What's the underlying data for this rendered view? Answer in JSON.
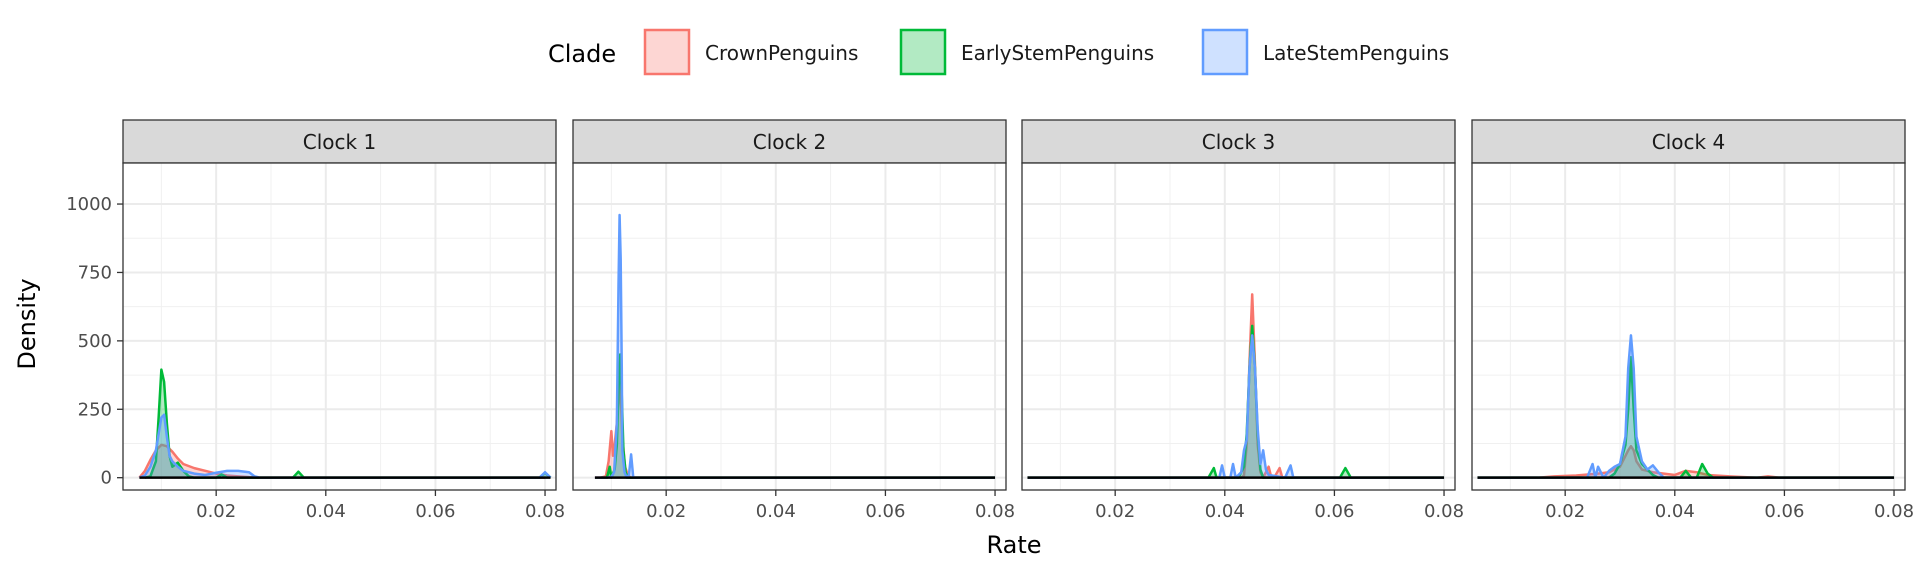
{
  "chart_data": {
    "type": "area",
    "subtype": "faceted-density",
    "xlabel": "Rate",
    "ylabel": "Density",
    "xlim": [
      0.003,
      0.082
    ],
    "ylim": [
      -45,
      1150
    ],
    "x_ticks": [
      0.02,
      0.04,
      0.06,
      0.08
    ],
    "y_ticks": [
      0,
      250,
      500,
      750,
      1000
    ],
    "x_tick_labels": [
      "0.02",
      "0.04",
      "0.06",
      "0.08"
    ],
    "y_tick_labels": [
      "0",
      "250",
      "500",
      "750",
      "1000"
    ],
    "grid": true,
    "legend": {
      "title": "Clade",
      "position": "top",
      "items": [
        "CrownPenguins",
        "EarlyStemPenguins",
        "LateStemPenguins"
      ]
    },
    "colors": {
      "CrownPenguins": {
        "line": "#F8766D",
        "fill": "#F8766D"
      },
      "EarlyStemPenguins": {
        "line": "#00BA38",
        "fill": "#00BA38"
      },
      "LateStemPenguins": {
        "line": "#619CFF",
        "fill": "#619CFF"
      }
    },
    "facets": [
      {
        "label": "Clock 1",
        "series": [
          {
            "name": "CrownPenguins",
            "points": [
              [
                0.006,
                0
              ],
              [
                0.007,
                25
              ],
              [
                0.008,
                65
              ],
              [
                0.009,
                100
              ],
              [
                0.01,
                120
              ],
              [
                0.011,
                115
              ],
              [
                0.012,
                95
              ],
              [
                0.013,
                70
              ],
              [
                0.014,
                50
              ],
              [
                0.016,
                35
              ],
              [
                0.018,
                25
              ],
              [
                0.02,
                15
              ],
              [
                0.022,
                8
              ],
              [
                0.024,
                5
              ],
              [
                0.026,
                2
              ],
              [
                0.028,
                0
              ],
              [
                0.08,
                0
              ]
            ]
          },
          {
            "name": "EarlyStemPenguins",
            "points": [
              [
                0.007,
                0
              ],
              [
                0.008,
                5
              ],
              [
                0.009,
                60
              ],
              [
                0.0095,
                220
              ],
              [
                0.01,
                395
              ],
              [
                0.0105,
                350
              ],
              [
                0.011,
                200
              ],
              [
                0.0115,
                80
              ],
              [
                0.012,
                40
              ],
              [
                0.013,
                55
              ],
              [
                0.014,
                25
              ],
              [
                0.015,
                5
              ],
              [
                0.016,
                0
              ],
              [
                0.02,
                0
              ],
              [
                0.021,
                12
              ],
              [
                0.022,
                0
              ],
              [
                0.034,
                0
              ],
              [
                0.035,
                22
              ],
              [
                0.036,
                0
              ],
              [
                0.079,
                0
              ],
              [
                0.08,
                18
              ],
              [
                0.081,
                0
              ]
            ]
          },
          {
            "name": "LateStemPenguins",
            "points": [
              [
                0.006,
                0
              ],
              [
                0.007,
                8
              ],
              [
                0.008,
                40
              ],
              [
                0.009,
                100
              ],
              [
                0.0095,
                160
              ],
              [
                0.01,
                220
              ],
              [
                0.0105,
                230
              ],
              [
                0.011,
                150
              ],
              [
                0.0115,
                80
              ],
              [
                0.012,
                60
              ],
              [
                0.013,
                40
              ],
              [
                0.014,
                25
              ],
              [
                0.016,
                15
              ],
              [
                0.018,
                10
              ],
              [
                0.02,
                18
              ],
              [
                0.022,
                25
              ],
              [
                0.024,
                25
              ],
              [
                0.026,
                20
              ],
              [
                0.027,
                5
              ],
              [
                0.028,
                0
              ],
              [
                0.079,
                0
              ],
              [
                0.08,
                20
              ],
              [
                0.081,
                0
              ]
            ]
          }
        ]
      },
      {
        "label": "Clock 2",
        "series": [
          {
            "name": "CrownPenguins",
            "points": [
              [
                0.007,
                0
              ],
              [
                0.008,
                0
              ],
              [
                0.009,
                5
              ],
              [
                0.0095,
                60
              ],
              [
                0.01,
                170
              ],
              [
                0.0103,
                80
              ],
              [
                0.0106,
                120
              ],
              [
                0.011,
                200
              ],
              [
                0.0114,
                350
              ],
              [
                0.0118,
                250
              ],
              [
                0.012,
                150
              ],
              [
                0.0125,
                40
              ],
              [
                0.013,
                10
              ],
              [
                0.0135,
                0
              ],
              [
                0.08,
                0
              ]
            ]
          },
          {
            "name": "EarlyStemPenguins",
            "points": [
              [
                0.008,
                0
              ],
              [
                0.0092,
                0
              ],
              [
                0.0097,
                40
              ],
              [
                0.01,
                0
              ],
              [
                0.0106,
                30
              ],
              [
                0.011,
                120
              ],
              [
                0.0113,
                320
              ],
              [
                0.0116,
                450
              ],
              [
                0.0119,
                300
              ],
              [
                0.0122,
                100
              ],
              [
                0.0126,
                20
              ],
              [
                0.013,
                0
              ],
              [
                0.0135,
                0
              ],
              [
                0.08,
                0
              ]
            ]
          },
          {
            "name": "LateStemPenguins",
            "points": [
              [
                0.007,
                0
              ],
              [
                0.009,
                0
              ],
              [
                0.01,
                3
              ],
              [
                0.0105,
                20
              ],
              [
                0.011,
                200
              ],
              [
                0.0113,
                700
              ],
              [
                0.0115,
                960
              ],
              [
                0.0117,
                800
              ],
              [
                0.0119,
                400
              ],
              [
                0.012,
                100
              ],
              [
                0.0124,
                20
              ],
              [
                0.0128,
                0
              ],
              [
                0.0132,
                10
              ],
              [
                0.0136,
                85
              ],
              [
                0.014,
                0
              ],
              [
                0.08,
                0
              ]
            ]
          }
        ]
      },
      {
        "label": "Clock 3",
        "series": [
          {
            "name": "CrownPenguins",
            "points": [
              [
                0.004,
                0
              ],
              [
                0.043,
                0
              ],
              [
                0.0435,
                8
              ],
              [
                0.044,
                120
              ],
              [
                0.0445,
                420
              ],
              [
                0.045,
                670
              ],
              [
                0.0455,
                420
              ],
              [
                0.046,
                120
              ],
              [
                0.0465,
                20
              ],
              [
                0.047,
                0
              ],
              [
                0.048,
                40
              ],
              [
                0.0485,
                0
              ],
              [
                0.049,
                0
              ],
              [
                0.05,
                35
              ],
              [
                0.0505,
                0
              ],
              [
                0.08,
                0
              ]
            ]
          },
          {
            "name": "EarlyStemPenguins",
            "points": [
              [
                0.004,
                0
              ],
              [
                0.037,
                0
              ],
              [
                0.038,
                35
              ],
              [
                0.0385,
                0
              ],
              [
                0.0425,
                0
              ],
              [
                0.043,
                20
              ],
              [
                0.0435,
                40
              ],
              [
                0.044,
                160
              ],
              [
                0.0445,
                400
              ],
              [
                0.045,
                555
              ],
              [
                0.0455,
                400
              ],
              [
                0.046,
                160
              ],
              [
                0.0465,
                30
              ],
              [
                0.047,
                0
              ],
              [
                0.061,
                0
              ],
              [
                0.062,
                35
              ],
              [
                0.063,
                0
              ],
              [
                0.08,
                0
              ]
            ]
          },
          {
            "name": "LateStemPenguins",
            "points": [
              [
                0.004,
                0
              ],
              [
                0.039,
                0
              ],
              [
                0.0395,
                45
              ],
              [
                0.04,
                0
              ],
              [
                0.041,
                0
              ],
              [
                0.0415,
                50
              ],
              [
                0.042,
                0
              ],
              [
                0.043,
                20
              ],
              [
                0.0435,
                100
              ],
              [
                0.044,
                140
              ],
              [
                0.0445,
                400
              ],
              [
                0.045,
                520
              ],
              [
                0.0455,
                400
              ],
              [
                0.046,
                180
              ],
              [
                0.0465,
                50
              ],
              [
                0.047,
                100
              ],
              [
                0.0475,
                30
              ],
              [
                0.048,
                10
              ],
              [
                0.051,
                0
              ],
              [
                0.052,
                45
              ],
              [
                0.0525,
                0
              ],
              [
                0.08,
                0
              ]
            ]
          }
        ]
      },
      {
        "label": "Clock 4",
        "series": [
          {
            "name": "CrownPenguins",
            "points": [
              [
                0.004,
                0
              ],
              [
                0.015,
                0
              ],
              [
                0.018,
                5
              ],
              [
                0.022,
                8
              ],
              [
                0.026,
                15
              ],
              [
                0.028,
                20
              ],
              [
                0.03,
                40
              ],
              [
                0.031,
                80
              ],
              [
                0.0315,
                100
              ],
              [
                0.032,
                115
              ],
              [
                0.0325,
                100
              ],
              [
                0.033,
                60
              ],
              [
                0.034,
                30
              ],
              [
                0.036,
                20
              ],
              [
                0.04,
                10
              ],
              [
                0.042,
                25
              ],
              [
                0.044,
                20
              ],
              [
                0.046,
                10
              ],
              [
                0.05,
                5
              ],
              [
                0.055,
                0
              ],
              [
                0.057,
                5
              ],
              [
                0.059,
                0
              ],
              [
                0.08,
                0
              ]
            ]
          },
          {
            "name": "EarlyStemPenguins",
            "points": [
              [
                0.004,
                0
              ],
              [
                0.028,
                0
              ],
              [
                0.029,
                15
              ],
              [
                0.03,
                50
              ],
              [
                0.031,
                120
              ],
              [
                0.0315,
                250
              ],
              [
                0.032,
                440
              ],
              [
                0.0325,
                250
              ],
              [
                0.033,
                100
              ],
              [
                0.034,
                50
              ],
              [
                0.035,
                30
              ],
              [
                0.036,
                10
              ],
              [
                0.037,
                0
              ],
              [
                0.041,
                0
              ],
              [
                0.042,
                25
              ],
              [
                0.043,
                0
              ],
              [
                0.044,
                0
              ],
              [
                0.045,
                50
              ],
              [
                0.046,
                15
              ],
              [
                0.047,
                0
              ],
              [
                0.08,
                0
              ]
            ]
          },
          {
            "name": "LateStemPenguins",
            "points": [
              [
                0.004,
                0
              ],
              [
                0.024,
                0
              ],
              [
                0.025,
                50
              ],
              [
                0.0255,
                0
              ],
              [
                0.026,
                40
              ],
              [
                0.027,
                0
              ],
              [
                0.028,
                25
              ],
              [
                0.029,
                40
              ],
              [
                0.03,
                50
              ],
              [
                0.031,
                150
              ],
              [
                0.0315,
                400
              ],
              [
                0.032,
                520
              ],
              [
                0.0325,
                400
              ],
              [
                0.033,
                150
              ],
              [
                0.034,
                60
              ],
              [
                0.035,
                30
              ],
              [
                0.036,
                45
              ],
              [
                0.037,
                20
              ],
              [
                0.038,
                0
              ],
              [
                0.08,
                0
              ]
            ]
          }
        ]
      }
    ]
  }
}
